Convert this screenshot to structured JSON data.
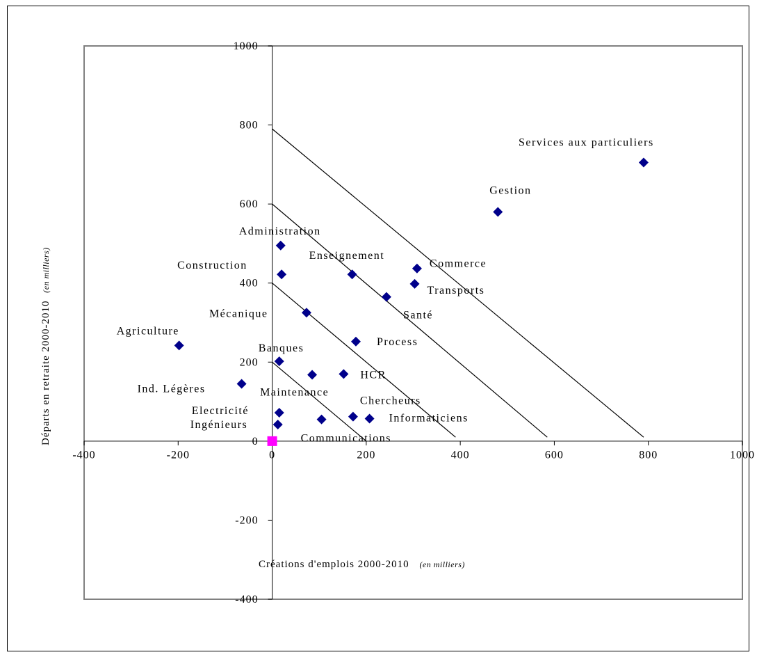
{
  "chart_data": {
    "type": "scatter",
    "title": "",
    "xlabel": "Créations d'emplois 2000-2010",
    "xlabel_unit": "(en milliers)",
    "ylabel": "Départs en retraite 2000-2010",
    "ylabel_unit": "(en milliers)",
    "xlim": [
      -400,
      1000
    ],
    "ylim": [
      -400,
      1000
    ],
    "x_ticks": [
      "-400",
      "-200",
      "0",
      "200",
      "400",
      "600",
      "800",
      "1000"
    ],
    "y_ticks": [
      "-400",
      "-200",
      "0",
      "200",
      "400",
      "600",
      "800",
      "1000"
    ],
    "grid": false,
    "colors": {
      "points": "#00008b",
      "origin_marker": "#ff00ff",
      "lines": "#000000"
    },
    "points": [
      {
        "label": "Services aux particuliers",
        "x": 790,
        "y": 705
      },
      {
        "label": "Gestion",
        "x": 480,
        "y": 580
      },
      {
        "label": "Administration",
        "x": 18,
        "y": 495
      },
      {
        "label": "Construction",
        "x": 20,
        "y": 422
      },
      {
        "label": "Enseignement",
        "x": 170,
        "y": 422
      },
      {
        "label": "Commerce",
        "x": 308,
        "y": 437
      },
      {
        "label": "Transports",
        "x": 303,
        "y": 398
      },
      {
        "label": "Santé",
        "x": 243,
        "y": 365
      },
      {
        "label": "Mécanique",
        "x": 73,
        "y": 325
      },
      {
        "label": "Agriculture",
        "x": -198,
        "y": 242
      },
      {
        "label": "Process",
        "x": 178,
        "y": 252
      },
      {
        "label": "Banques",
        "x": 15,
        "y": 202
      },
      {
        "label": "HCR",
        "x": 152,
        "y": 170
      },
      {
        "label": "Maintenance",
        "x": 85,
        "y": 168
      },
      {
        "label": "Ind. Légères",
        "x": -65,
        "y": 145
      },
      {
        "label": "Electricité",
        "x": 15,
        "y": 72
      },
      {
        "label": "Chercheurs",
        "x": 172,
        "y": 62
      },
      {
        "label": "Informaticiens",
        "x": 207,
        "y": 57
      },
      {
        "label": "Ingénieurs",
        "x": 12,
        "y": 42
      },
      {
        "label": "Communications",
        "x": 105,
        "y": 55
      }
    ],
    "origin_marker": {
      "x": 0,
      "y": 0
    },
    "reference_lines": [
      {
        "from": [
          0,
          200
        ],
        "to": [
          200,
          0
        ]
      },
      {
        "from": [
          0,
          400
        ],
        "to": [
          390,
          10
        ]
      },
      {
        "from": [
          0,
          600
        ],
        "to": [
          585,
          10
        ]
      },
      {
        "from": [
          0,
          790
        ],
        "to": [
          790,
          10
        ]
      }
    ]
  }
}
